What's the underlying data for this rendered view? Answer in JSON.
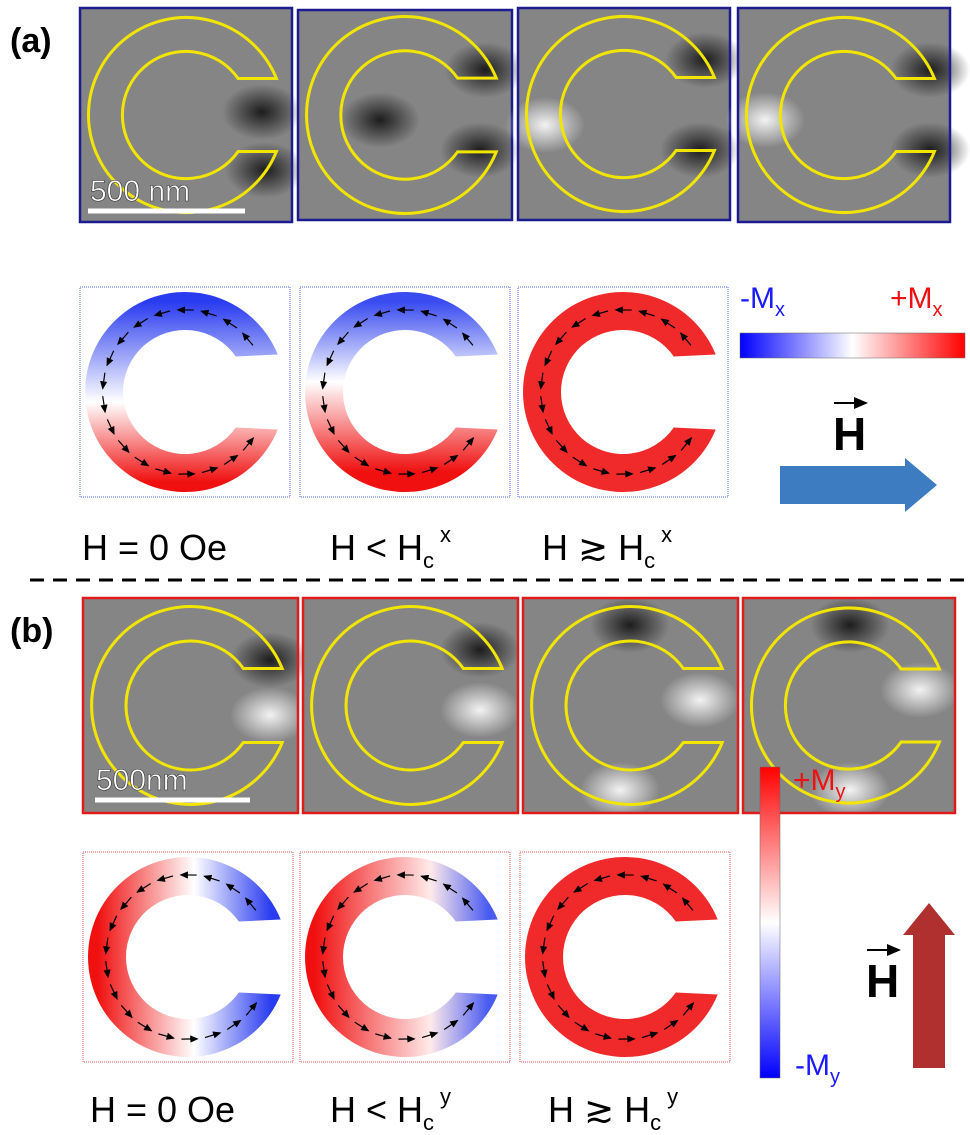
{
  "panels": [
    {
      "label": "(a)",
      "scale_bar": "500 nm",
      "colorbar": {
        "neg": "-M",
        "neg_sub": "x",
        "pos": "+M",
        "pos_sub": "x"
      },
      "field": "H",
      "captions": [
        {
          "text": "H = 0 Oe"
        },
        {
          "text": "H < H",
          "sub": "c",
          "sup": "x"
        },
        {
          "text": "H ≳ H",
          "sub": "c",
          "sup": "x"
        }
      ]
    },
    {
      "label": "(b)",
      "scale_bar": "500nm",
      "colorbar": {
        "neg": "-M",
        "neg_sub": "y",
        "pos": "+M",
        "pos_sub": "y"
      },
      "field": "H",
      "captions": [
        {
          "text": "H = 0 Oe"
        },
        {
          "text": "H < H",
          "sub": "c",
          "sup": "y"
        },
        {
          "text": "H ≳ H",
          "sub": "c",
          "sup": "y"
        }
      ]
    }
  ]
}
